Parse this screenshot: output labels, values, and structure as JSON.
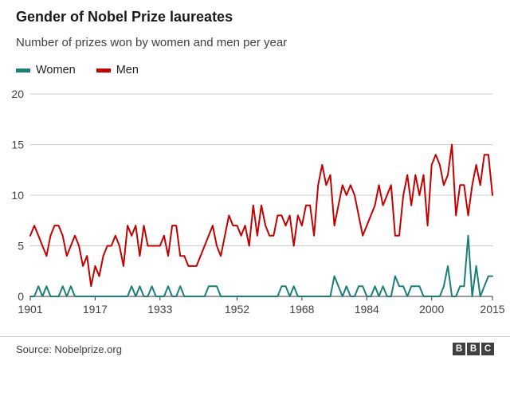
{
  "header": {
    "title": "Gender of Nobel Prize laureates",
    "subtitle": "Number of prizes won by women and men per year"
  },
  "legend": [
    {
      "label": "Women",
      "color": "#1A7F78"
    },
    {
      "label": "Men",
      "color": "#C40000"
    }
  ],
  "chart_data": {
    "type": "line",
    "title": "Gender of Nobel Prize laureates",
    "xlabel": "",
    "ylabel": "",
    "ylim": [
      0,
      20
    ],
    "yticks": [
      0,
      5,
      10,
      15,
      20
    ],
    "xticks": [
      1901,
      1917,
      1933,
      1952,
      1968,
      1984,
      2000,
      2015
    ],
    "grid": true,
    "legend_position": "top",
    "x": [
      1901,
      1902,
      1903,
      1904,
      1905,
      1906,
      1907,
      1908,
      1909,
      1910,
      1911,
      1912,
      1913,
      1914,
      1915,
      1916,
      1917,
      1918,
      1919,
      1920,
      1921,
      1922,
      1923,
      1924,
      1925,
      1926,
      1927,
      1928,
      1929,
      1930,
      1931,
      1932,
      1933,
      1934,
      1935,
      1936,
      1937,
      1938,
      1939,
      1940,
      1941,
      1942,
      1943,
      1944,
      1945,
      1946,
      1947,
      1948,
      1949,
      1950,
      1951,
      1952,
      1953,
      1954,
      1955,
      1956,
      1957,
      1958,
      1959,
      1960,
      1961,
      1962,
      1963,
      1964,
      1965,
      1966,
      1967,
      1968,
      1969,
      1970,
      1971,
      1972,
      1973,
      1974,
      1975,
      1976,
      1977,
      1978,
      1979,
      1980,
      1981,
      1982,
      1983,
      1984,
      1985,
      1986,
      1987,
      1988,
      1989,
      1990,
      1991,
      1992,
      1993,
      1994,
      1995,
      1996,
      1997,
      1998,
      1999,
      2000,
      2001,
      2002,
      2003,
      2004,
      2005,
      2006,
      2007,
      2008,
      2009,
      2010,
      2011,
      2012,
      2013,
      2014,
      2015
    ],
    "series": [
      {
        "name": "Women",
        "color": "#1A7F78",
        "values": [
          0,
          0,
          1,
          0,
          1,
          0,
          0,
          0,
          1,
          0,
          1,
          0,
          0,
          0,
          0,
          0,
          0,
          0,
          0,
          0,
          0,
          0,
          0,
          0,
          0,
          1,
          0,
          1,
          0,
          0,
          1,
          0,
          0,
          0,
          1,
          0,
          0,
          1,
          0,
          0,
          0,
          0,
          0,
          0,
          1,
          1,
          1,
          0,
          0,
          0,
          0,
          0,
          0,
          0,
          0,
          0,
          0,
          0,
          0,
          0,
          0,
          0,
          1,
          1,
          0,
          1,
          0,
          0,
          0,
          0,
          0,
          0,
          0,
          0,
          0,
          2,
          1,
          0,
          1,
          0,
          0,
          1,
          1,
          0,
          0,
          1,
          0,
          1,
          0,
          0,
          2,
          1,
          1,
          0,
          1,
          1,
          1,
          0,
          0,
          0,
          0,
          0,
          1,
          3,
          0,
          0,
          1,
          1,
          6,
          0,
          3,
          0,
          1,
          2,
          2
        ]
      },
      {
        "name": "Men",
        "color": "#C40000",
        "values": [
          6,
          7,
          6,
          5,
          4,
          6,
          7,
          7,
          6,
          4,
          5,
          6,
          5,
          3,
          4,
          1,
          3,
          2,
          4,
          5,
          5,
          6,
          5,
          3,
          7,
          6,
          7,
          4,
          7,
          5,
          5,
          5,
          5,
          6,
          4,
          7,
          7,
          4,
          4,
          3,
          3,
          3,
          4,
          5,
          6,
          7,
          5,
          4,
          6,
          8,
          7,
          7,
          6,
          7,
          5,
          9,
          6,
          9,
          7,
          6,
          6,
          8,
          8,
          7,
          8,
          5,
          8,
          7,
          9,
          9,
          6,
          11,
          13,
          11,
          12,
          7,
          9,
          11,
          10,
          11,
          10,
          8,
          6,
          7,
          8,
          9,
          11,
          9,
          10,
          11,
          6,
          6,
          10,
          12,
          9,
          12,
          10,
          12,
          7,
          13,
          14,
          13,
          11,
          12,
          15,
          8,
          11,
          11,
          8,
          11,
          13,
          11,
          14,
          14,
          10
        ]
      }
    ]
  },
  "footer": {
    "source": "Source: Nobelprize.org",
    "logo_letters": [
      "B",
      "B",
      "C"
    ]
  }
}
